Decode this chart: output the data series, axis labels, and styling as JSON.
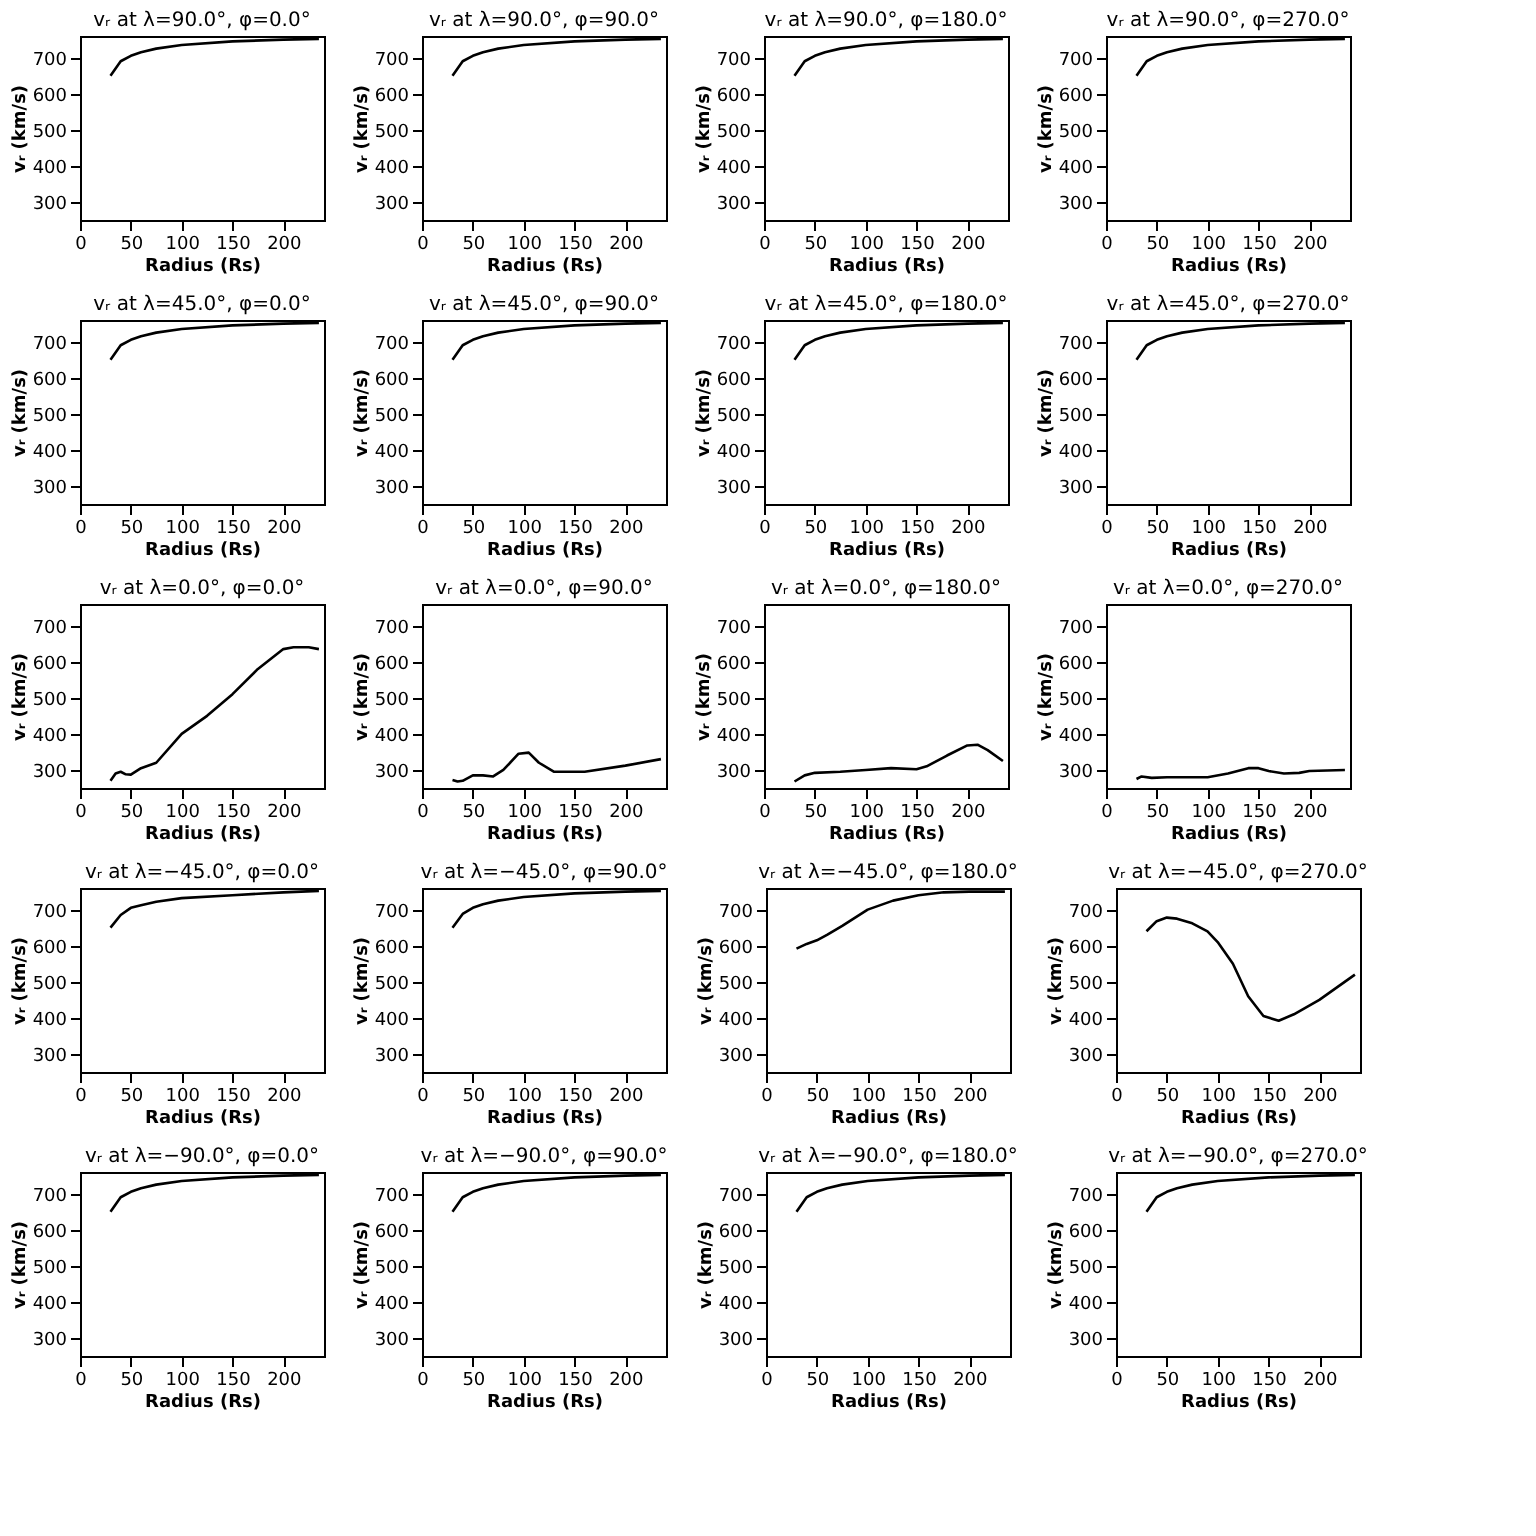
{
  "chart_data": [
    {
      "type": "line",
      "title": "vᵣ at λ=90.0°, φ=0.0°",
      "xlabel": "Radius (Rs)",
      "ylabel": "vᵣ (km/s)",
      "xlim": [
        0,
        240
      ],
      "ylim": [
        250,
        760
      ],
      "xticks": [
        0,
        50,
        100,
        150,
        200
      ],
      "yticks": [
        300,
        400,
        500,
        600,
        700
      ],
      "x": [
        30,
        40,
        50,
        60,
        75,
        100,
        150,
        200,
        235
      ],
      "series": [
        {
          "color": "#000000",
          "values": [
            650,
            690,
            705,
            715,
            725,
            735,
            745,
            750,
            752
          ]
        }
      ]
    },
    {
      "type": "line",
      "title": "vᵣ at λ=90.0°, φ=90.0°",
      "xlabel": "Radius (Rs)",
      "ylabel": "vᵣ (km/s)",
      "xlim": [
        0,
        240
      ],
      "ylim": [
        250,
        760
      ],
      "xticks": [
        0,
        50,
        100,
        150,
        200
      ],
      "yticks": [
        300,
        400,
        500,
        600,
        700
      ],
      "x": [
        30,
        40,
        50,
        60,
        75,
        100,
        150,
        200,
        235
      ],
      "series": [
        {
          "color": "#000000",
          "values": [
            650,
            690,
            705,
            715,
            725,
            735,
            745,
            750,
            752
          ]
        }
      ]
    },
    {
      "type": "line",
      "title": "vᵣ at λ=90.0°, φ=180.0°",
      "xlabel": "Radius (Rs)",
      "ylabel": "vᵣ (km/s)",
      "xlim": [
        0,
        240
      ],
      "ylim": [
        250,
        760
      ],
      "xticks": [
        0,
        50,
        100,
        150,
        200
      ],
      "yticks": [
        300,
        400,
        500,
        600,
        700
      ],
      "x": [
        30,
        40,
        50,
        60,
        75,
        100,
        150,
        200,
        235
      ],
      "series": [
        {
          "color": "#000000",
          "values": [
            650,
            690,
            705,
            715,
            725,
            735,
            745,
            750,
            752
          ]
        }
      ]
    },
    {
      "type": "line",
      "title": "vᵣ at λ=90.0°, φ=270.0°",
      "xlabel": "Radius (Rs)",
      "ylabel": "vᵣ (km/s)",
      "xlim": [
        0,
        240
      ],
      "ylim": [
        250,
        760
      ],
      "xticks": [
        0,
        50,
        100,
        150,
        200
      ],
      "yticks": [
        300,
        400,
        500,
        600,
        700
      ],
      "x": [
        30,
        40,
        50,
        60,
        75,
        100,
        150,
        200,
        235
      ],
      "series": [
        {
          "color": "#000000",
          "values": [
            650,
            690,
            705,
            715,
            725,
            735,
            745,
            750,
            752
          ]
        }
      ]
    },
    {
      "type": "line",
      "title": "vᵣ at λ=45.0°, φ=0.0°",
      "xlabel": "Radius (Rs)",
      "ylabel": "vᵣ (km/s)",
      "xlim": [
        0,
        240
      ],
      "ylim": [
        250,
        760
      ],
      "xticks": [
        0,
        50,
        100,
        150,
        200
      ],
      "yticks": [
        300,
        400,
        500,
        600,
        700
      ],
      "x": [
        30,
        40,
        50,
        60,
        75,
        100,
        150,
        200,
        235
      ],
      "series": [
        {
          "color": "#000000",
          "values": [
            650,
            690,
            705,
            715,
            725,
            735,
            745,
            750,
            752
          ]
        }
      ]
    },
    {
      "type": "line",
      "title": "vᵣ at λ=45.0°, φ=90.0°",
      "xlabel": "Radius (Rs)",
      "ylabel": "vᵣ (km/s)",
      "xlim": [
        0,
        240
      ],
      "ylim": [
        250,
        760
      ],
      "xticks": [
        0,
        50,
        100,
        150,
        200
      ],
      "yticks": [
        300,
        400,
        500,
        600,
        700
      ],
      "x": [
        30,
        40,
        50,
        60,
        75,
        100,
        150,
        200,
        235
      ],
      "series": [
        {
          "color": "#000000",
          "values": [
            650,
            690,
            705,
            715,
            725,
            735,
            745,
            750,
            752
          ]
        }
      ]
    },
    {
      "type": "line",
      "title": "vᵣ at λ=45.0°, φ=180.0°",
      "xlabel": "Radius (Rs)",
      "ylabel": "vᵣ (km/s)",
      "xlim": [
        0,
        240
      ],
      "ylim": [
        250,
        760
      ],
      "xticks": [
        0,
        50,
        100,
        150,
        200
      ],
      "yticks": [
        300,
        400,
        500,
        600,
        700
      ],
      "x": [
        30,
        40,
        50,
        60,
        75,
        100,
        150,
        200,
        235
      ],
      "series": [
        {
          "color": "#000000",
          "values": [
            650,
            690,
            705,
            715,
            725,
            735,
            745,
            750,
            752
          ]
        }
      ]
    },
    {
      "type": "line",
      "title": "vᵣ at λ=45.0°, φ=270.0°",
      "xlabel": "Radius (Rs)",
      "ylabel": "vᵣ (km/s)",
      "xlim": [
        0,
        240
      ],
      "ylim": [
        250,
        760
      ],
      "xticks": [
        0,
        50,
        100,
        150,
        200
      ],
      "yticks": [
        300,
        400,
        500,
        600,
        700
      ],
      "x": [
        30,
        40,
        50,
        60,
        75,
        100,
        150,
        200,
        235
      ],
      "series": [
        {
          "color": "#000000",
          "values": [
            650,
            690,
            705,
            715,
            725,
            735,
            745,
            750,
            752
          ]
        }
      ]
    },
    {
      "type": "line",
      "title": "vᵣ at λ=0.0°, φ=0.0°",
      "xlabel": "Radius (Rs)",
      "ylabel": "vᵣ (km/s)",
      "xlim": [
        0,
        240
      ],
      "ylim": [
        250,
        760
      ],
      "xticks": [
        0,
        50,
        100,
        150,
        200
      ],
      "yticks": [
        300,
        400,
        500,
        600,
        700
      ],
      "x": [
        30,
        35,
        40,
        45,
        50,
        60,
        75,
        100,
        125,
        150,
        175,
        200,
        210,
        225,
        235
      ],
      "series": [
        {
          "color": "#000000",
          "values": [
            270,
            290,
            295,
            288,
            287,
            305,
            320,
            400,
            450,
            510,
            580,
            635,
            640,
            640,
            635
          ]
        }
      ]
    },
    {
      "type": "line",
      "title": "vᵣ at λ=0.0°, φ=90.0°",
      "xlabel": "Radius (Rs)",
      "ylabel": "vᵣ (km/s)",
      "xlim": [
        0,
        240
      ],
      "ylim": [
        250,
        760
      ],
      "xticks": [
        0,
        50,
        100,
        150,
        200
      ],
      "yticks": [
        300,
        400,
        500,
        600,
        700
      ],
      "x": [
        30,
        35,
        40,
        50,
        60,
        70,
        80,
        95,
        105,
        115,
        130,
        160,
        200,
        235
      ],
      "series": [
        {
          "color": "#000000",
          "values": [
            272,
            268,
            270,
            285,
            285,
            282,
            300,
            345,
            348,
            320,
            295,
            295,
            312,
            330
          ]
        }
      ]
    },
    {
      "type": "line",
      "title": "vᵣ at λ=0.0°, φ=180.0°",
      "xlabel": "Radius (Rs)",
      "ylabel": "vᵣ (km/s)",
      "xlim": [
        0,
        240
      ],
      "ylim": [
        250,
        760
      ],
      "xticks": [
        0,
        50,
        100,
        150,
        200
      ],
      "yticks": [
        300,
        400,
        500,
        600,
        700
      ],
      "x": [
        30,
        40,
        50,
        75,
        100,
        125,
        150,
        160,
        180,
        200,
        210,
        220,
        235
      ],
      "series": [
        {
          "color": "#000000",
          "values": [
            268,
            285,
            292,
            295,
            300,
            305,
            302,
            310,
            340,
            368,
            370,
            355,
            325
          ]
        }
      ]
    },
    {
      "type": "line",
      "title": "vᵣ at λ=0.0°, φ=270.0°",
      "xlabel": "Radius (Rs)",
      "ylabel": "vᵣ (km/s)",
      "xlim": [
        0,
        240
      ],
      "ylim": [
        250,
        760
      ],
      "xticks": [
        0,
        50,
        100,
        150,
        200
      ],
      "yticks": [
        300,
        400,
        500,
        600,
        700
      ],
      "x": [
        30,
        35,
        45,
        60,
        100,
        120,
        140,
        150,
        160,
        175,
        190,
        200,
        235
      ],
      "series": [
        {
          "color": "#000000",
          "values": [
            275,
            282,
            278,
            280,
            280,
            290,
            305,
            305,
            297,
            290,
            292,
            297,
            300
          ]
        }
      ]
    },
    {
      "type": "line",
      "title": "vᵣ at λ=−45.0°, φ=0.0°",
      "xlabel": "Radius (Rs)",
      "ylabel": "vᵣ (km/s)",
      "xlim": [
        0,
        240
      ],
      "ylim": [
        250,
        760
      ],
      "xticks": [
        0,
        50,
        100,
        150,
        200
      ],
      "yticks": [
        300,
        400,
        500,
        600,
        700
      ],
      "x": [
        30,
        40,
        50,
        60,
        75,
        100,
        150,
        200,
        235
      ],
      "series": [
        {
          "color": "#000000",
          "values": [
            650,
            685,
            705,
            712,
            722,
            732,
            740,
            748,
            752
          ]
        }
      ]
    },
    {
      "type": "line",
      "title": "vᵣ at λ=−45.0°, φ=90.0°",
      "xlabel": "Radius (Rs)",
      "ylabel": "vᵣ (km/s)",
      "xlim": [
        0,
        240
      ],
      "ylim": [
        250,
        760
      ],
      "xticks": [
        0,
        50,
        100,
        150,
        200
      ],
      "yticks": [
        300,
        400,
        500,
        600,
        700
      ],
      "x": [
        30,
        40,
        50,
        60,
        75,
        100,
        150,
        200,
        235
      ],
      "series": [
        {
          "color": "#000000",
          "values": [
            650,
            688,
            705,
            715,
            725,
            735,
            745,
            750,
            752
          ]
        }
      ]
    },
    {
      "type": "line",
      "title": "vᵣ at λ=−45.0°, φ=180.0°",
      "xlabel": "Radius (Rs)",
      "ylabel": "vᵣ (km/s)",
      "xlim": [
        0,
        240
      ],
      "ylim": [
        250,
        760
      ],
      "xticks": [
        0,
        50,
        100,
        150,
        200
      ],
      "yticks": [
        300,
        400,
        500,
        600,
        700
      ],
      "x": [
        30,
        40,
        50,
        60,
        75,
        100,
        125,
        150,
        175,
        200,
        235
      ],
      "series": [
        {
          "color": "#000000",
          "values": [
            592,
            605,
            615,
            630,
            655,
            700,
            725,
            740,
            748,
            750,
            750
          ]
        }
      ]
    },
    {
      "type": "line",
      "title": "vᵣ at λ=−45.0°, φ=270.0°",
      "xlabel": "Radius (Rs)",
      "ylabel": "vᵣ (km/s)",
      "xlim": [
        0,
        240
      ],
      "ylim": [
        250,
        760
      ],
      "xticks": [
        0,
        50,
        100,
        150,
        200
      ],
      "yticks": [
        300,
        400,
        500,
        600,
        700
      ],
      "x": [
        30,
        40,
        50,
        60,
        75,
        90,
        100,
        115,
        130,
        145,
        160,
        175,
        200,
        235
      ],
      "series": [
        {
          "color": "#000000",
          "values": [
            640,
            668,
            678,
            675,
            662,
            640,
            610,
            550,
            460,
            405,
            392,
            410,
            450,
            520
          ]
        }
      ]
    },
    {
      "type": "line",
      "title": "vᵣ at λ=−90.0°, φ=0.0°",
      "xlabel": "Radius (Rs)",
      "ylabel": "vᵣ (km/s)",
      "xlim": [
        0,
        240
      ],
      "ylim": [
        250,
        760
      ],
      "xticks": [
        0,
        50,
        100,
        150,
        200
      ],
      "yticks": [
        300,
        400,
        500,
        600,
        700
      ],
      "x": [
        30,
        40,
        50,
        60,
        75,
        100,
        150,
        200,
        235
      ],
      "series": [
        {
          "color": "#000000",
          "values": [
            650,
            690,
            705,
            715,
            725,
            735,
            745,
            750,
            752
          ]
        }
      ]
    },
    {
      "type": "line",
      "title": "vᵣ at λ=−90.0°, φ=90.0°",
      "xlabel": "Radius (Rs)",
      "ylabel": "vᵣ (km/s)",
      "xlim": [
        0,
        240
      ],
      "ylim": [
        250,
        760
      ],
      "xticks": [
        0,
        50,
        100,
        150,
        200
      ],
      "yticks": [
        300,
        400,
        500,
        600,
        700
      ],
      "x": [
        30,
        40,
        50,
        60,
        75,
        100,
        150,
        200,
        235
      ],
      "series": [
        {
          "color": "#000000",
          "values": [
            650,
            690,
            705,
            715,
            725,
            735,
            745,
            750,
            752
          ]
        }
      ]
    },
    {
      "type": "line",
      "title": "vᵣ at λ=−90.0°, φ=180.0°",
      "xlabel": "Radius (Rs)",
      "ylabel": "vᵣ (km/s)",
      "xlim": [
        0,
        240
      ],
      "ylim": [
        250,
        760
      ],
      "xticks": [
        0,
        50,
        100,
        150,
        200
      ],
      "yticks": [
        300,
        400,
        500,
        600,
        700
      ],
      "x": [
        30,
        40,
        50,
        60,
        75,
        100,
        150,
        200,
        235
      ],
      "series": [
        {
          "color": "#000000",
          "values": [
            650,
            690,
            705,
            715,
            725,
            735,
            745,
            750,
            752
          ]
        }
      ]
    },
    {
      "type": "line",
      "title": "vᵣ at λ=−90.0°, φ=270.0°",
      "xlabel": "Radius (Rs)",
      "ylabel": "vᵣ (km/s)",
      "xlim": [
        0,
        240
      ],
      "ylim": [
        250,
        760
      ],
      "xticks": [
        0,
        50,
        100,
        150,
        200
      ],
      "yticks": [
        300,
        400,
        500,
        600,
        700
      ],
      "x": [
        30,
        40,
        50,
        60,
        75,
        100,
        150,
        200,
        235
      ],
      "series": [
        {
          "color": "#000000",
          "values": [
            650,
            690,
            705,
            715,
            725,
            735,
            745,
            750,
            752
          ]
        }
      ]
    }
  ]
}
